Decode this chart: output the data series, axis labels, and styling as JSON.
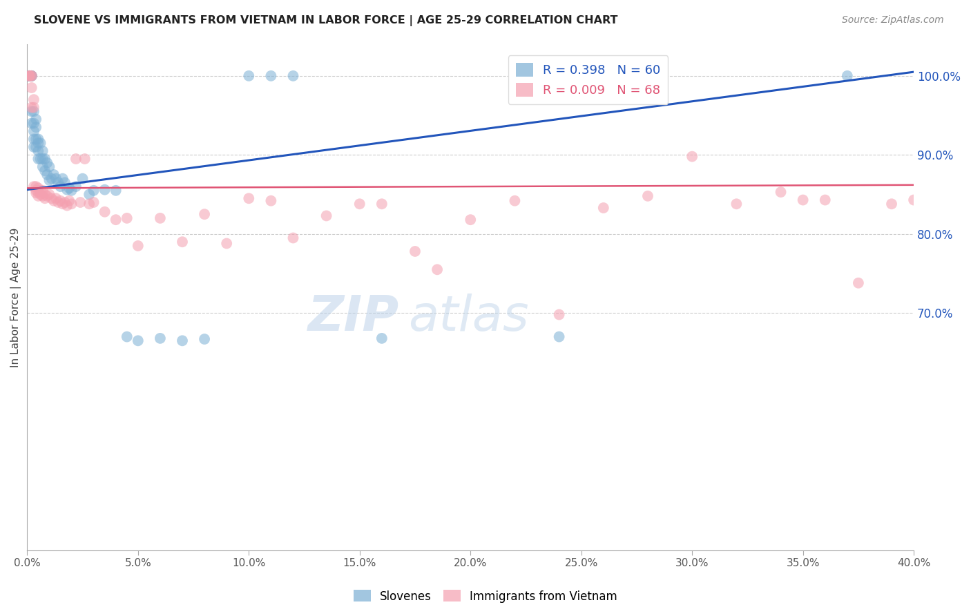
{
  "title": "SLOVENE VS IMMIGRANTS FROM VIETNAM IN LABOR FORCE | AGE 25-29 CORRELATION CHART",
  "source_text": "Source: ZipAtlas.com",
  "ylabel": "In Labor Force | Age 25-29",
  "xlim": [
    0.0,
    0.4
  ],
  "ylim": [
    0.4,
    1.04
  ],
  "xtick_positions": [
    0.0,
    0.05,
    0.1,
    0.15,
    0.2,
    0.25,
    0.3,
    0.35,
    0.4
  ],
  "xtick_labels": [
    "0.0%",
    "5.0%",
    "10.0%",
    "15.0%",
    "20.0%",
    "25.0%",
    "30.0%",
    "35.0%",
    "40.0%"
  ],
  "ytick_right_positions": [
    1.0,
    0.9,
    0.8,
    0.7
  ],
  "ytick_right_labels": [
    "100.0%",
    "90.0%",
    "80.0%",
    "70.0%"
  ],
  "blue_color": "#7BAFD4",
  "pink_color": "#F4A0B0",
  "blue_line_color": "#2255BB",
  "pink_line_color": "#E05575",
  "legend_R_blue": "R = 0.398",
  "legend_N_blue": "N = 60",
  "legend_R_pink": "R = 0.009",
  "legend_N_pink": "N = 68",
  "legend_label_blue": "Slovenes",
  "legend_label_pink": "Immigrants from Vietnam",
  "watermark_zip": "ZIP",
  "watermark_atlas": "atlas",
  "blue_line_x0": 0.0,
  "blue_line_x1": 0.4,
  "blue_line_y0": 0.856,
  "blue_line_y1": 1.005,
  "pink_line_x0": 0.0,
  "pink_line_x1": 0.4,
  "pink_line_y0": 0.858,
  "pink_line_y1": 0.862,
  "blue_x": [
    0.001,
    0.001,
    0.001,
    0.001,
    0.002,
    0.002,
    0.002,
    0.002,
    0.002,
    0.003,
    0.003,
    0.003,
    0.003,
    0.003,
    0.004,
    0.004,
    0.004,
    0.004,
    0.005,
    0.005,
    0.005,
    0.005,
    0.006,
    0.006,
    0.007,
    0.007,
    0.007,
    0.008,
    0.008,
    0.009,
    0.009,
    0.01,
    0.01,
    0.011,
    0.012,
    0.013,
    0.014,
    0.015,
    0.016,
    0.017,
    0.018,
    0.019,
    0.02,
    0.022,
    0.025,
    0.028,
    0.03,
    0.035,
    0.04,
    0.045,
    0.05,
    0.06,
    0.07,
    0.08,
    0.1,
    0.11,
    0.12,
    0.16,
    0.24,
    0.37
  ],
  "blue_y": [
    1.0,
    1.0,
    1.0,
    1.0,
    1.0,
    1.0,
    1.0,
    0.955,
    0.94,
    0.955,
    0.94,
    0.93,
    0.92,
    0.91,
    0.945,
    0.935,
    0.92,
    0.91,
    0.92,
    0.915,
    0.905,
    0.895,
    0.915,
    0.895,
    0.905,
    0.895,
    0.885,
    0.895,
    0.88,
    0.89,
    0.875,
    0.885,
    0.868,
    0.87,
    0.875,
    0.87,
    0.865,
    0.86,
    0.87,
    0.865,
    0.856,
    0.858,
    0.855,
    0.86,
    0.87,
    0.85,
    0.855,
    0.856,
    0.855,
    0.67,
    0.665,
    0.668,
    0.665,
    0.667,
    1.0,
    1.0,
    1.0,
    0.668,
    0.67,
    1.0
  ],
  "pink_x": [
    0.001,
    0.001,
    0.001,
    0.002,
    0.002,
    0.002,
    0.002,
    0.003,
    0.003,
    0.003,
    0.004,
    0.004,
    0.004,
    0.005,
    0.005,
    0.005,
    0.006,
    0.006,
    0.007,
    0.007,
    0.008,
    0.008,
    0.009,
    0.01,
    0.011,
    0.012,
    0.013,
    0.014,
    0.015,
    0.016,
    0.017,
    0.018,
    0.019,
    0.02,
    0.022,
    0.024,
    0.026,
    0.028,
    0.03,
    0.035,
    0.04,
    0.045,
    0.05,
    0.06,
    0.07,
    0.08,
    0.09,
    0.1,
    0.11,
    0.12,
    0.135,
    0.15,
    0.16,
    0.175,
    0.185,
    0.2,
    0.22,
    0.24,
    0.26,
    0.28,
    0.3,
    0.32,
    0.34,
    0.35,
    0.36,
    0.375,
    0.39,
    0.4
  ],
  "pink_y": [
    1.0,
    1.0,
    1.0,
    1.0,
    1.0,
    0.985,
    0.96,
    0.97,
    0.96,
    0.86,
    0.86,
    0.855,
    0.852,
    0.858,
    0.853,
    0.848,
    0.855,
    0.85,
    0.855,
    0.848,
    0.85,
    0.845,
    0.848,
    0.85,
    0.845,
    0.842,
    0.845,
    0.84,
    0.842,
    0.838,
    0.84,
    0.836,
    0.842,
    0.838,
    0.895,
    0.84,
    0.895,
    0.838,
    0.84,
    0.828,
    0.818,
    0.82,
    0.785,
    0.82,
    0.79,
    0.825,
    0.788,
    0.845,
    0.842,
    0.795,
    0.823,
    0.838,
    0.838,
    0.778,
    0.755,
    0.818,
    0.842,
    0.698,
    0.833,
    0.848,
    0.898,
    0.838,
    0.853,
    0.843,
    0.843,
    0.738,
    0.838,
    0.843
  ]
}
